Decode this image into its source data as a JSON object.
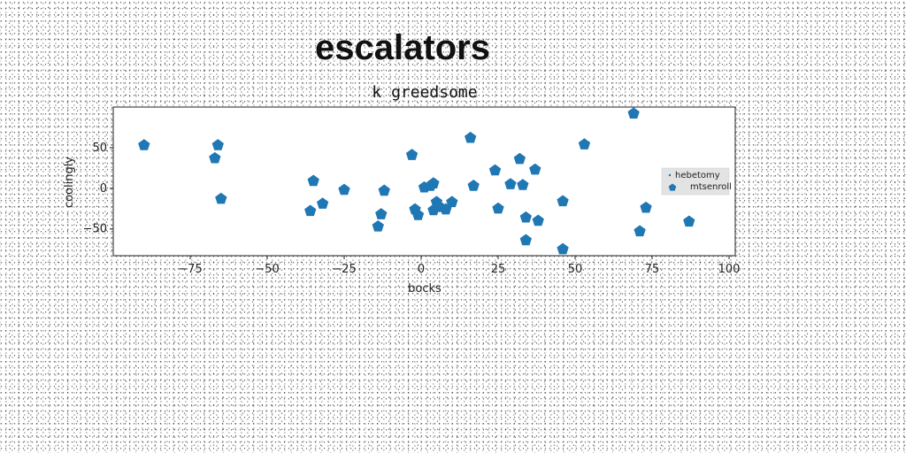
{
  "chart_data": {
    "type": "scatter",
    "title": "escalators",
    "subtitle": "k greedsome",
    "xlabel": "bocks",
    "ylabel": "coolingly",
    "xlim": [
      -100,
      102
    ],
    "ylim": [
      -83,
      100
    ],
    "xticks": [
      -75,
      -50,
      -25,
      0,
      25,
      50,
      75,
      100
    ],
    "yticks": [
      50,
      0,
      -50
    ],
    "x_tick_labels": [
      "−75",
      "−50",
      "−25",
      "0",
      "25",
      "50",
      "75",
      "100"
    ],
    "y_tick_labels": [
      "50",
      "0",
      "−50"
    ],
    "grid": false,
    "legend_position": "center-right",
    "series": [
      {
        "name": "hebetomy",
        "marker": "point",
        "color": "#1f77b4",
        "points": []
      },
      {
        "name": "mtsenroll",
        "marker": "pentagon",
        "color": "#1f77b4",
        "points": [
          [
            -90,
            53
          ],
          [
            -66,
            53
          ],
          [
            -67,
            37
          ],
          [
            -65,
            -13
          ],
          [
            -35,
            9
          ],
          [
            -32,
            -19
          ],
          [
            -36,
            -28
          ],
          [
            -25,
            -2
          ],
          [
            -12,
            -3
          ],
          [
            -13,
            -32
          ],
          [
            -14,
            -47
          ],
          [
            -3,
            41
          ],
          [
            -2,
            -26
          ],
          [
            -1,
            -33
          ],
          [
            1,
            1
          ],
          [
            3,
            3
          ],
          [
            4,
            6
          ],
          [
            4,
            -27
          ],
          [
            5,
            -17
          ],
          [
            6,
            -23
          ],
          [
            8,
            -26
          ],
          [
            10,
            -17
          ],
          [
            16,
            62
          ],
          [
            17,
            3
          ],
          [
            24,
            22
          ],
          [
            25,
            -25
          ],
          [
            29,
            5
          ],
          [
            32,
            36
          ],
          [
            33,
            4
          ],
          [
            34,
            -36
          ],
          [
            34,
            -64
          ],
          [
            37,
            23
          ],
          [
            38,
            -40
          ],
          [
            46,
            -75
          ],
          [
            46,
            -16
          ],
          [
            53,
            54
          ],
          [
            69,
            92
          ],
          [
            71,
            -53
          ],
          [
            73,
            -24
          ],
          [
            87,
            -41
          ]
        ]
      }
    ]
  }
}
